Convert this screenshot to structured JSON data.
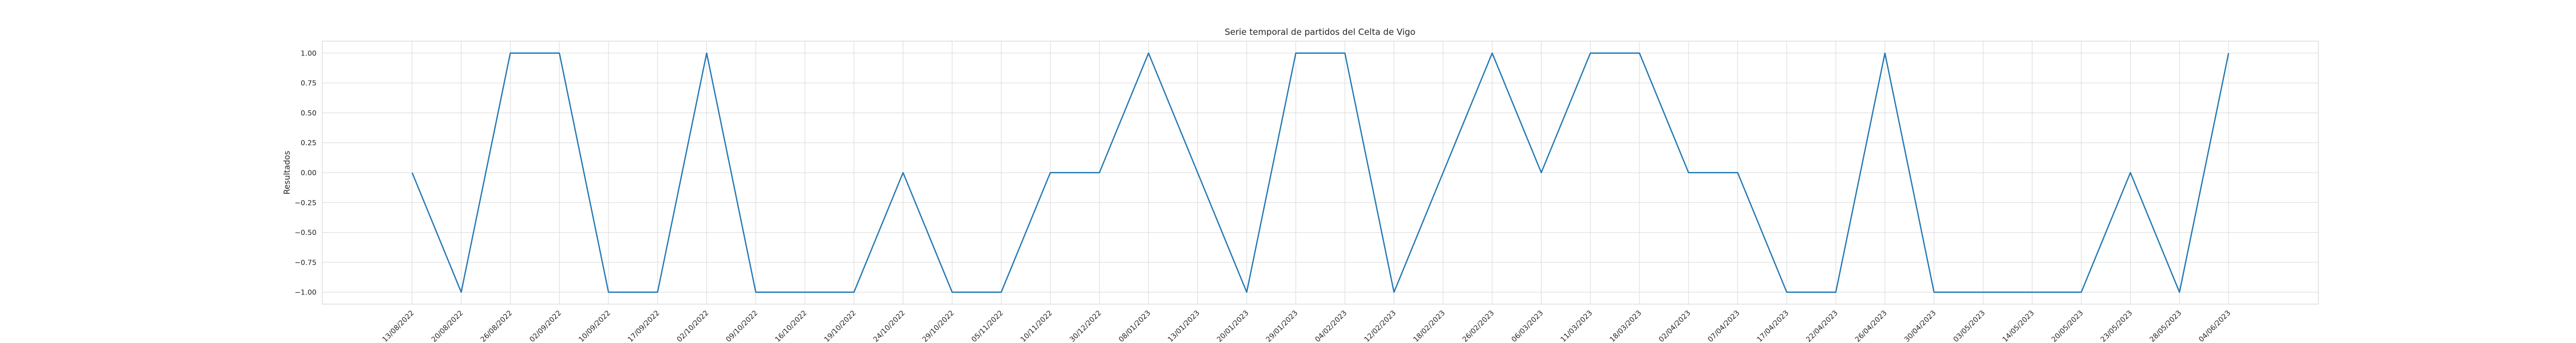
{
  "chart_data": {
    "type": "line",
    "title": "Serie temporal de partidos del Celta de Vigo",
    "xlabel": "",
    "ylabel": "Resultados",
    "ylim": [
      -1.1,
      1.1
    ],
    "yticks": [
      "−1.00",
      "−0.75",
      "−0.50",
      "−0.25",
      "0.00",
      "0.25",
      "0.50",
      "0.75",
      "1.00"
    ],
    "ytick_values": [
      -1.0,
      -0.75,
      -0.5,
      -0.25,
      0.0,
      0.25,
      0.5,
      0.75,
      1.0
    ],
    "grid": true,
    "series_color": "#1f77b4",
    "categories": [
      "13/08/2022",
      "20/08/2022",
      "26/08/2022",
      "02/09/2022",
      "10/09/2022",
      "17/09/2022",
      "02/10/2022",
      "09/10/2022",
      "16/10/2022",
      "19/10/2022",
      "24/10/2022",
      "29/10/2022",
      "05/11/2022",
      "10/11/2022",
      "30/12/2022",
      "08/01/2023",
      "13/01/2023",
      "20/01/2023",
      "29/01/2023",
      "04/02/2023",
      "12/02/2023",
      "18/02/2023",
      "26/02/2023",
      "06/03/2023",
      "11/03/2023",
      "18/03/2023",
      "02/04/2023",
      "07/04/2023",
      "17/04/2023",
      "22/04/2023",
      "26/04/2023",
      "30/04/2023",
      "03/05/2023",
      "14/05/2023",
      "20/05/2023",
      "23/05/2023",
      "28/05/2023",
      "04/06/2023"
    ],
    "series": [
      {
        "values": [
          0,
          -1,
          1,
          1,
          -1,
          -1,
          1,
          -1,
          -1,
          -1,
          0,
          -1,
          -1,
          0,
          0,
          1,
          0,
          -1,
          1,
          1,
          -1,
          0,
          1,
          0,
          1,
          1,
          0,
          0,
          -1,
          -1,
          1,
          -1,
          -1,
          -1,
          -1,
          0,
          -1,
          1
        ]
      }
    ]
  }
}
